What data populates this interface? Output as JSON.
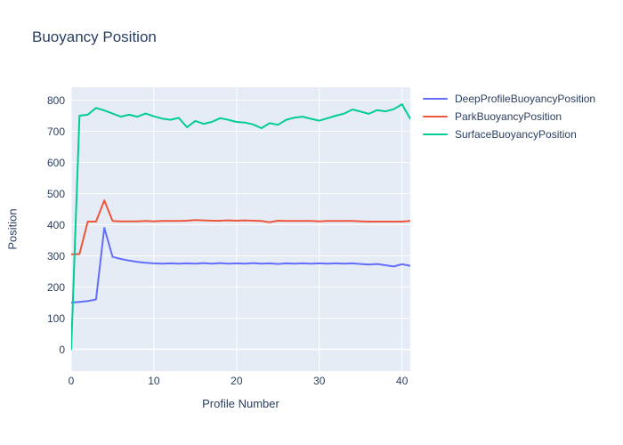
{
  "title": "Buoyancy Position",
  "colors": {
    "text": "#2a3f5f",
    "plot_background": "#e5ecf6",
    "gridline": "#ffffff",
    "paper": "#ffffff"
  },
  "chart_data": {
    "type": "line",
    "title": "Buoyancy Position",
    "xlabel": "Profile Number",
    "ylabel": "Position",
    "grid": true,
    "legend_position": "top-right-outside",
    "xlim": [
      0,
      41
    ],
    "ylim": [
      -70,
      841
    ],
    "x_ticks": [
      0,
      10,
      20,
      30,
      40
    ],
    "y_ticks": [
      0,
      100,
      200,
      300,
      400,
      500,
      600,
      700,
      800
    ],
    "x": [
      0,
      1,
      2,
      3,
      4,
      5,
      6,
      7,
      8,
      9,
      10,
      11,
      12,
      13,
      14,
      15,
      16,
      17,
      18,
      19,
      20,
      21,
      22,
      23,
      24,
      25,
      26,
      27,
      28,
      29,
      30,
      31,
      32,
      33,
      34,
      35,
      36,
      37,
      38,
      39,
      40,
      41
    ],
    "series": [
      {
        "name": "DeepProfileBuoyancyPosition",
        "color": "#636efa",
        "values": [
          150,
          152,
          155,
          160,
          390,
          297,
          290,
          285,
          281,
          278,
          276,
          275,
          276,
          275,
          276,
          275,
          277,
          275,
          277,
          275,
          276,
          275,
          277,
          275,
          276,
          274,
          276,
          275,
          276,
          275,
          276,
          275,
          276,
          275,
          276,
          274,
          272,
          274,
          270,
          266,
          273,
          268
        ]
      },
      {
        "name": "ParkBuoyancyPosition",
        "color": "#ef553b",
        "values": [
          305,
          306,
          410,
          410,
          478,
          412,
          411,
          411,
          411,
          412,
          411,
          412,
          412,
          412,
          413,
          415,
          414,
          413,
          413,
          414,
          413,
          414,
          413,
          412,
          408,
          413,
          412,
          412,
          412,
          412,
          411,
          412,
          412,
          412,
          412,
          411,
          410,
          410,
          410,
          410,
          410,
          412
        ]
      },
      {
        "name": "SurfaceBuoyancyPosition",
        "color": "#00cc96",
        "values": [
          0,
          750,
          753,
          775,
          767,
          757,
          747,
          753,
          747,
          757,
          748,
          741,
          737,
          743,
          713,
          733,
          724,
          730,
          742,
          737,
          730,
          728,
          722,
          710,
          726,
          721,
          737,
          744,
          747,
          740,
          734,
          742,
          750,
          757,
          770,
          763,
          756,
          768,
          764,
          771,
          787,
          740
        ]
      }
    ]
  }
}
